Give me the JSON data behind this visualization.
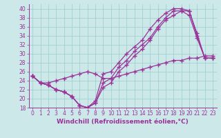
{
  "xlabel": "Windchill (Refroidissement éolien,°C)",
  "bg_color": "#cce8e8",
  "line_color": "#993399",
  "xlim": [
    -0.5,
    23.5
  ],
  "ylim": [
    18,
    41
  ],
  "xticks": [
    0,
    1,
    2,
    3,
    4,
    5,
    6,
    7,
    8,
    9,
    10,
    11,
    12,
    13,
    14,
    15,
    16,
    17,
    18,
    19,
    20,
    21,
    22,
    23
  ],
  "yticks": [
    18,
    20,
    22,
    24,
    26,
    28,
    30,
    32,
    34,
    36,
    38,
    40
  ],
  "curve1_x": [
    0,
    1,
    2,
    3,
    4,
    5,
    6,
    7,
    8,
    9,
    10,
    11,
    12,
    13,
    14,
    15,
    16,
    17,
    18,
    19,
    20,
    21,
    22,
    23
  ],
  "curve1_y": [
    25.0,
    23.5,
    23.0,
    22.0,
    21.5,
    20.5,
    18.5,
    18.0,
    19.5,
    25.5,
    26.0,
    28.0,
    30.0,
    31.5,
    33.0,
    35.5,
    37.5,
    39.0,
    40.0,
    40.0,
    39.5,
    34.0,
    29.0,
    29.0
  ],
  "curve2_x": [
    0,
    1,
    2,
    3,
    4,
    5,
    6,
    7,
    8,
    9,
    10,
    11,
    12,
    13,
    14,
    15,
    16,
    17,
    18,
    19,
    20,
    21,
    22,
    23
  ],
  "curve2_y": [
    25.0,
    23.5,
    23.0,
    22.0,
    21.5,
    20.5,
    18.5,
    18.0,
    19.0,
    23.5,
    24.5,
    27.0,
    28.5,
    30.5,
    32.0,
    33.5,
    36.0,
    38.0,
    39.5,
    39.5,
    38.5,
    33.5,
    29.0,
    29.0
  ],
  "curve3_x": [
    0,
    1,
    2,
    3,
    4,
    5,
    6,
    7,
    8,
    9,
    10,
    11,
    12,
    13,
    14,
    15,
    16,
    17,
    18,
    19,
    20,
    21,
    22,
    23
  ],
  "curve3_y": [
    25.0,
    23.5,
    23.0,
    22.0,
    21.5,
    20.5,
    18.5,
    18.0,
    19.0,
    22.5,
    23.5,
    26.0,
    27.5,
    29.5,
    31.0,
    33.0,
    35.5,
    37.5,
    38.5,
    39.5,
    39.5,
    34.5,
    29.0,
    29.0
  ],
  "curve4_x": [
    0,
    1,
    2,
    3,
    4,
    5,
    6,
    7,
    8,
    9,
    10,
    11,
    12,
    13,
    14,
    15,
    16,
    17,
    18,
    19,
    20,
    21,
    22,
    23
  ],
  "curve4_y": [
    25.0,
    23.5,
    23.5,
    24.0,
    24.5,
    25.0,
    25.5,
    26.0,
    25.5,
    24.5,
    24.5,
    25.0,
    25.5,
    26.0,
    26.5,
    27.0,
    27.5,
    28.0,
    28.5,
    28.5,
    29.0,
    29.0,
    29.5,
    29.5
  ],
  "grid_color": "#99cccc",
  "marker": "+",
  "markersize": 4.0,
  "linewidth": 0.9,
  "xlabel_fontsize": 6.5,
  "tick_fontsize": 5.5
}
